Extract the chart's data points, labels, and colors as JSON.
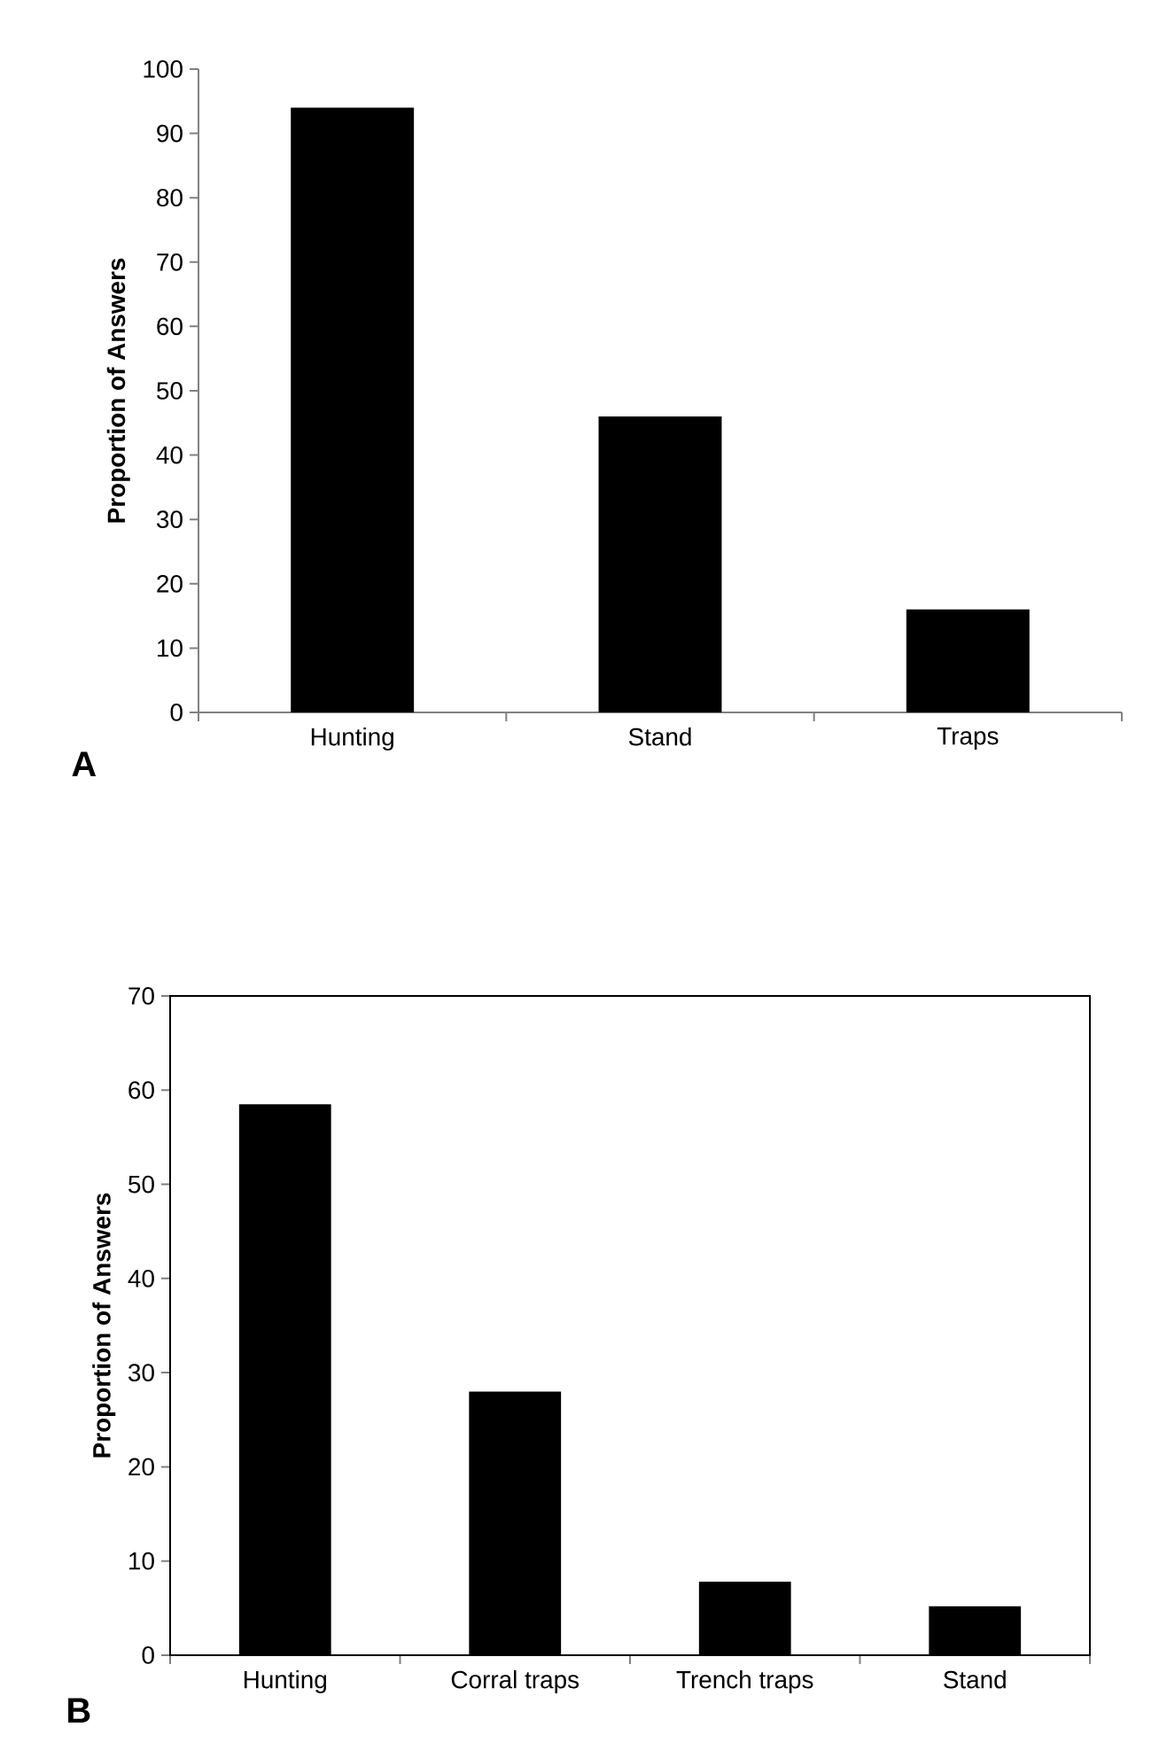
{
  "chart_data": [
    {
      "type": "bar",
      "categories": [
        "Hunting",
        "Stand",
        "Traps"
      ],
      "values": [
        94,
        46,
        16
      ],
      "color": "#000000",
      "ylabel": "Proportion of Answers",
      "ylim": [
        0,
        100
      ],
      "yticks": [
        0,
        10,
        20,
        30,
        40,
        50,
        60,
        70,
        80,
        90,
        100
      ],
      "annotations": [
        "A"
      ]
    },
    {
      "type": "bar",
      "categories": [
        "Hunting",
        "Corral traps",
        "Trench traps",
        "Stand"
      ],
      "values": [
        58.5,
        28,
        7.8,
        5.2
      ],
      "color": "#000000",
      "ylabel": "Proportion of Answers",
      "ylim": [
        0,
        70
      ],
      "yticks": [
        0,
        10,
        20,
        30,
        40,
        50,
        60,
        70
      ],
      "annotations": [
        "B"
      ]
    }
  ]
}
